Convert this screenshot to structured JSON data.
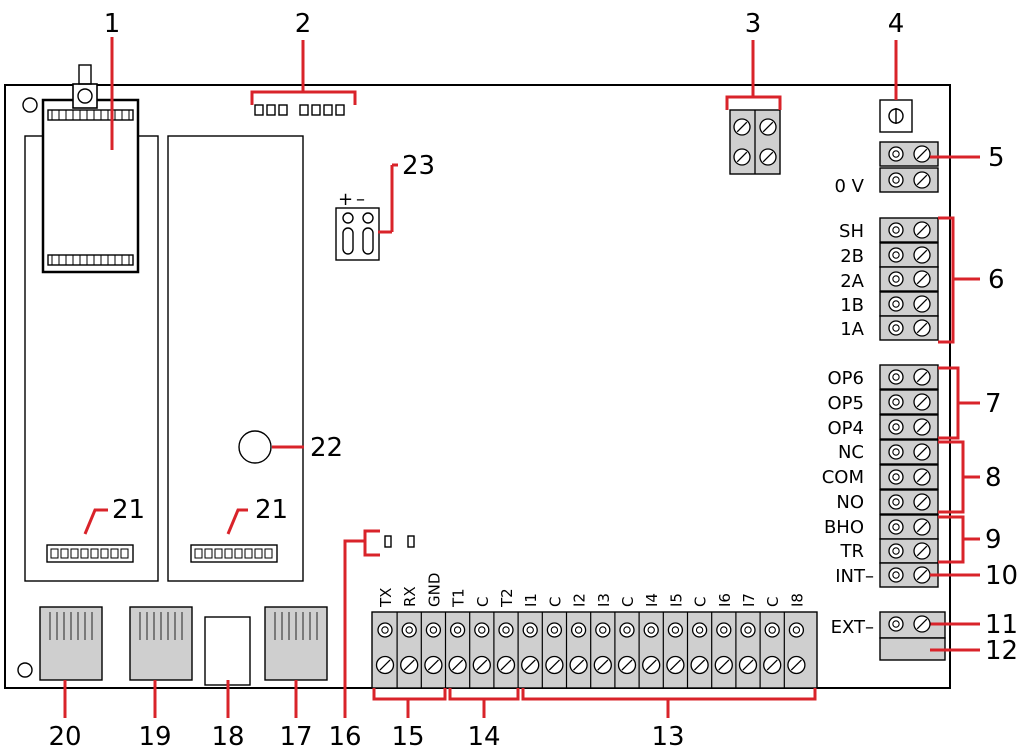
{
  "colors": {
    "callout": "#d9232a",
    "terminal": "#cfcfcf",
    "line": "#000000",
    "background": "#ffffff"
  },
  "callouts": [
    "1",
    "2",
    "3",
    "4",
    "5",
    "6",
    "7",
    "8",
    "9",
    "10",
    "11",
    "12",
    "13",
    "14",
    "15",
    "16",
    "17",
    "18",
    "19",
    "20",
    "21",
    "22",
    "23"
  ],
  "right_labels": {
    "zero_v": "0 V",
    "sh": "SH",
    "b2": "2B",
    "a2": "2A",
    "b1": "1B",
    "a1": "1A",
    "op6": "OP6",
    "op5": "OP5",
    "op4": "OP4",
    "nc": "NC",
    "com": "COM",
    "no": "NO",
    "bho": "BHO",
    "tr": "TR",
    "int": "INT–",
    "ext": "EXT–"
  },
  "bottom_labels": [
    "TX",
    "RX",
    "GND",
    "T1",
    "C",
    "T2",
    "I1",
    "C",
    "I2",
    "I3",
    "C",
    "I4",
    "I5",
    "C",
    "I6",
    "I7",
    "C",
    "I8"
  ],
  "polarity": {
    "plus": "+",
    "minus": "–"
  },
  "icons": {
    "terminal_top": "circle-terminal-icon",
    "terminal_screw": "screw-terminal-icon",
    "rj45": "rj45-port-icon"
  }
}
